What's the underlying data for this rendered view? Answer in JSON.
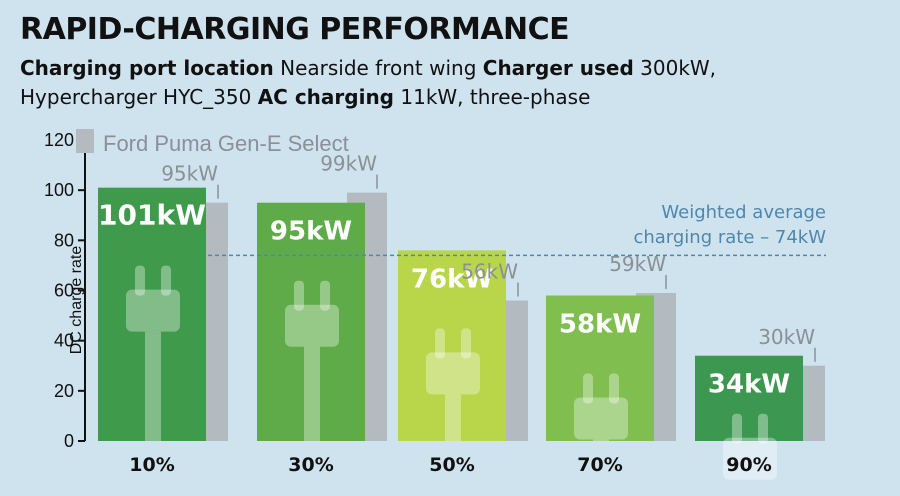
{
  "header": {
    "title": "RAPID-CHARGING PERFORMANCE",
    "line1_label1": "Charging port location",
    "line1_value1": " Nearside front wing ",
    "line1_label2": "Charger used",
    "line1_value2": " 300kW,",
    "line2_value1": "Hypercharger HYC_350 ",
    "line2_label1": "AC charging",
    "line2_value2": " 11kW, three-phase"
  },
  "chart_data": {
    "type": "bar",
    "ylabel": "DC charge rate",
    "ylim": [
      0,
      120
    ],
    "yticks": [
      0,
      20,
      40,
      60,
      80,
      100,
      120
    ],
    "categories": [
      "10%",
      "30%",
      "50%",
      "70%",
      "90%"
    ],
    "series": [
      {
        "values": [
          101,
          95,
          76,
          58,
          34
        ],
        "labels": [
          "101kW",
          "95kW",
          "76kW",
          "58kW",
          "34kW"
        ],
        "colors": [
          "#3f9a4b",
          "#5fab49",
          "#b9d54a",
          "#7fbe4f",
          "#3c9851"
        ]
      },
      {
        "name": "Ford Puma Gen-E Select",
        "values": [
          95,
          99,
          56,
          59,
          30
        ],
        "labels": [
          "95kW",
          "99kW",
          "56kW",
          "59kW",
          "30kW"
        ],
        "color": "#b3bac0"
      }
    ],
    "reference_line": {
      "value": 74,
      "label_line1": "Weighted average",
      "label_line2": "charging rate – 74kW",
      "color": "#4f87ab"
    },
    "grid": false,
    "legend": "top-left"
  }
}
